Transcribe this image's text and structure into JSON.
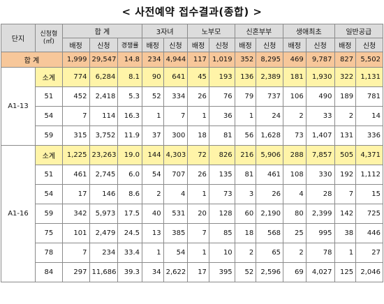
{
  "title": "< 사전예약 접수결과(종합) >",
  "header": {
    "danji": "단지",
    "type_line1": "신청형",
    "type_line2": "(㎡)",
    "groups": [
      "합 계",
      "3자녀",
      "노부모",
      "신혼부부",
      "생애최초",
      "일반공급"
    ],
    "baejeong": "배정",
    "sincheong": "신청",
    "rate": "경쟁률"
  },
  "total": {
    "label": "합 계",
    "values": [
      "1,999",
      "29,547",
      "14.8",
      "234",
      "4,944",
      "117",
      "1,019",
      "352",
      "8,295",
      "469",
      "9,787",
      "827",
      "5,502"
    ]
  },
  "complexes": [
    {
      "name": "A1-13",
      "rows": [
        {
          "type": "소계",
          "values": [
            "774",
            "6,284",
            "8.1",
            "90",
            "641",
            "45",
            "193",
            "136",
            "2,389",
            "181",
            "1,930",
            "322",
            "1,131"
          ]
        },
        {
          "type": "51",
          "values": [
            "452",
            "2,418",
            "5.3",
            "52",
            "334",
            "26",
            "76",
            "79",
            "737",
            "106",
            "490",
            "189",
            "781"
          ]
        },
        {
          "type": "54",
          "values": [
            "7",
            "114",
            "16.3",
            "1",
            "7",
            "1",
            "36",
            "1",
            "24",
            "2",
            "33",
            "2",
            "14"
          ]
        },
        {
          "type": "59",
          "values": [
            "315",
            "3,752",
            "11.9",
            "37",
            "300",
            "18",
            "81",
            "56",
            "1,628",
            "73",
            "1,407",
            "131",
            "336"
          ]
        }
      ]
    },
    {
      "name": "A1-16",
      "rows": [
        {
          "type": "소계",
          "values": [
            "1,225",
            "23,263",
            "19.0",
            "144",
            "4,303",
            "72",
            "826",
            "216",
            "5,906",
            "288",
            "7,857",
            "505",
            "4,371"
          ]
        },
        {
          "type": "51",
          "values": [
            "461",
            "2,745",
            "6.0",
            "54",
            "707",
            "26",
            "135",
            "81",
            "461",
            "108",
            "330",
            "192",
            "1,112"
          ]
        },
        {
          "type": "54",
          "values": [
            "17",
            "146",
            "8.6",
            "2",
            "4",
            "1",
            "73",
            "3",
            "26",
            "4",
            "28",
            "7",
            "15"
          ]
        },
        {
          "type": "59",
          "values": [
            "342",
            "5,973",
            "17.5",
            "40",
            "531",
            "20",
            "128",
            "60",
            "2,190",
            "80",
            "2,399",
            "142",
            "725"
          ]
        },
        {
          "type": "75",
          "values": [
            "101",
            "2,479",
            "24.5",
            "13",
            "385",
            "7",
            "85",
            "18",
            "568",
            "25",
            "995",
            "38",
            "446"
          ]
        },
        {
          "type": "78",
          "values": [
            "7",
            "234",
            "33.4",
            "1",
            "54",
            "1",
            "10",
            "2",
            "65",
            "2",
            "78",
            "1",
            "27"
          ]
        },
        {
          "type": "84",
          "values": [
            "297",
            "11,686",
            "39.3",
            "34",
            "2,622",
            "17",
            "395",
            "52",
            "2,596",
            "69",
            "4,027",
            "125",
            "2,046"
          ]
        }
      ]
    }
  ]
}
